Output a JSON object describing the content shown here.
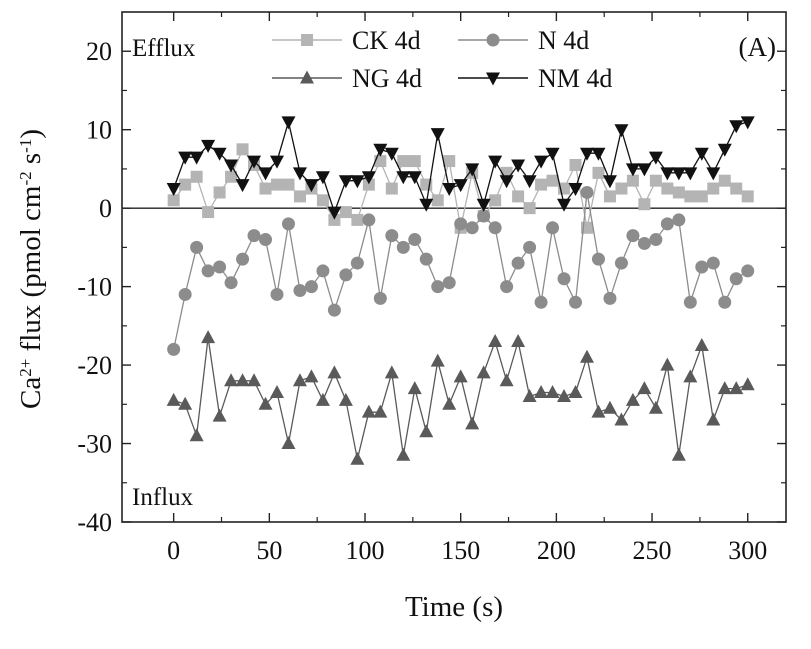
{
  "chart_data": {
    "type": "line",
    "panel_label": "(A)",
    "xlabel": "Time (s)",
    "ylabel": "Ca2+ flux (pmol cm-2 s-1)",
    "ylabel_parts": {
      "pre": "Ca",
      "sup1": "2+",
      "mid": " flux (pmol cm",
      "sup2": "-2",
      "mid2": " s",
      "sup3": "-1",
      "post": ")"
    },
    "annotations": {
      "top_left": "Efflux",
      "bottom_left": "Influx"
    },
    "xlim": [
      -27,
      320
    ],
    "ylim": [
      -40,
      25
    ],
    "xticks": [
      0,
      50,
      100,
      150,
      200,
      250,
      300
    ],
    "yticks": [
      20,
      10,
      0,
      -10,
      -20,
      -30,
      -40
    ],
    "xtick_labels": [
      "0",
      "50",
      "100",
      "150",
      "200",
      "250",
      "300"
    ],
    "ytick_labels": [
      "20",
      "10",
      "0",
      "-10",
      "-20",
      "-30",
      "-40"
    ],
    "zero_line": true,
    "legend_position": "top-center",
    "series": [
      {
        "name": "CK 4d",
        "marker": "square",
        "color": "#b4b4b4",
        "x": [
          0,
          6,
          12,
          18,
          24,
          30,
          36,
          42,
          48,
          54,
          60,
          66,
          72,
          78,
          84,
          90,
          96,
          102,
          108,
          114,
          120,
          126,
          132,
          138,
          144,
          150,
          156,
          162,
          168,
          174,
          180,
          186,
          192,
          198,
          204,
          210,
          216,
          222,
          228,
          234,
          240,
          246,
          252,
          258,
          264,
          270,
          276,
          282,
          288,
          294,
          300
        ],
        "y": [
          1,
          3,
          4,
          -0.5,
          2,
          4,
          7.5,
          5.5,
          2.5,
          3,
          3,
          1.5,
          2.5,
          1,
          -1.5,
          -0.5,
          -1.5,
          3,
          6,
          2.5,
          6,
          6,
          3,
          1,
          6,
          -2.5,
          4.5,
          -1,
          1,
          4.5,
          1.5,
          0,
          3,
          3.5,
          2.5,
          5.5,
          -2.5,
          4.5,
          1.5,
          2.5,
          3.5,
          0.5,
          3.5,
          2.5,
          2,
          1.5,
          1.5,
          2.5,
          3.5,
          2.5,
          1.5
        ]
      },
      {
        "name": "N 4d",
        "marker": "circle",
        "color": "#8c8c8c",
        "x": [
          0,
          6,
          12,
          18,
          24,
          30,
          36,
          42,
          48,
          54,
          60,
          66,
          72,
          78,
          84,
          90,
          96,
          102,
          108,
          114,
          120,
          126,
          132,
          138,
          144,
          150,
          156,
          162,
          168,
          174,
          180,
          186,
          192,
          198,
          204,
          210,
          216,
          222,
          228,
          234,
          240,
          246,
          252,
          258,
          264,
          270,
          276,
          282,
          288,
          294,
          300
        ],
        "y": [
          -18,
          -11,
          -5,
          -8,
          -7.5,
          -9.5,
          -6.5,
          -3.5,
          -4,
          -11,
          -2,
          -10.5,
          -10,
          -8,
          -13,
          -8.5,
          -7,
          -1.5,
          -11.5,
          -3.5,
          -5,
          -4,
          -6.5,
          -10,
          -9.5,
          -2,
          -2.5,
          -1,
          -2.5,
          -10,
          -7,
          -5,
          -12,
          -2.5,
          -9,
          -12,
          2,
          -6.5,
          -11.5,
          -7,
          -3.5,
          -4.5,
          -4,
          -2,
          -1.5,
          -12,
          -7.5,
          -7,
          -12,
          -9,
          -8
        ]
      },
      {
        "name": "NG 4d",
        "marker": "triangle-up",
        "color": "#5a5a5a",
        "x": [
          0,
          6,
          12,
          18,
          24,
          30,
          36,
          42,
          48,
          54,
          60,
          66,
          72,
          78,
          84,
          90,
          96,
          102,
          108,
          114,
          120,
          126,
          132,
          138,
          144,
          150,
          156,
          162,
          168,
          174,
          180,
          186,
          192,
          198,
          204,
          210,
          216,
          222,
          228,
          234,
          240,
          246,
          252,
          258,
          264,
          270,
          276,
          282,
          288,
          294,
          300
        ],
        "y": [
          -24.5,
          -25,
          -29,
          -16.5,
          -26.5,
          -22,
          -22,
          -22,
          -25,
          -23.5,
          -30,
          -22,
          -21.5,
          -24.5,
          -21,
          -24.5,
          -32,
          -26,
          -26,
          -21,
          -31.5,
          -23,
          -28.5,
          -19.5,
          -25,
          -21.5,
          -27.5,
          -21,
          -17,
          -22,
          -17,
          -24,
          -23.5,
          -23.5,
          -24,
          -23.5,
          -19,
          -26,
          -25.5,
          -27,
          -24.5,
          -23,
          -25.5,
          -20,
          -31.5,
          -21.5,
          -17.5,
          -27,
          -23,
          -23,
          -22.5
        ]
      },
      {
        "name": "NM 4d",
        "marker": "triangle-down",
        "color": "#111111",
        "x": [
          0,
          6,
          12,
          18,
          24,
          30,
          36,
          42,
          48,
          54,
          60,
          66,
          72,
          78,
          84,
          90,
          96,
          102,
          108,
          114,
          120,
          126,
          132,
          138,
          144,
          150,
          156,
          162,
          168,
          174,
          180,
          186,
          192,
          198,
          204,
          210,
          216,
          222,
          228,
          234,
          240,
          246,
          252,
          258,
          264,
          270,
          276,
          282,
          288,
          294,
          300
        ],
        "y": [
          2.5,
          6.5,
          6.5,
          8,
          7,
          5.5,
          3,
          6,
          4.5,
          6,
          11,
          4.5,
          3,
          4,
          -0.5,
          3.5,
          3.5,
          4,
          7.5,
          7,
          4,
          4,
          0.5,
          9.5,
          2.5,
          3,
          5,
          0.5,
          6,
          3.5,
          5.5,
          3.5,
          6,
          7,
          0.5,
          2.5,
          7,
          7,
          3.5,
          10,
          5,
          5,
          6.5,
          4.5,
          4.5,
          4.5,
          7,
          4.5,
          7.5,
          10.5,
          11
        ]
      }
    ]
  }
}
